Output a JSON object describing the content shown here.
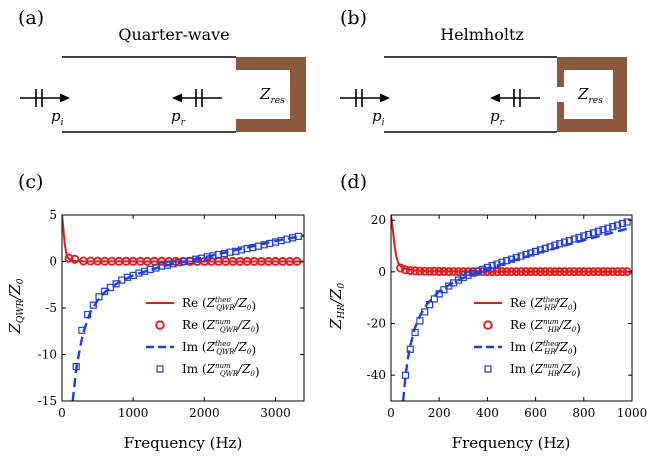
{
  "panel_labels": [
    "(a)",
    "(b)",
    "(c)",
    "(d)"
  ],
  "schematics": [
    {
      "title": "Quarter-wave",
      "incident_label": "p",
      "incident_sub": "i",
      "reflected_label": "p",
      "reflected_sub": "r",
      "impedance_label": "Z",
      "impedance_sub": "res",
      "wall_color": "#8b5a3c"
    },
    {
      "title": "Helmholtz",
      "incident_label": "p",
      "incident_sub": "i",
      "reflected_label": "p",
      "reflected_sub": "r",
      "impedance_label": "Z",
      "impedance_sub": "res",
      "wall_color": "#8b5a3c"
    }
  ],
  "colors": {
    "real": "#e41a1c",
    "imag": "#1f3fd6"
  },
  "chart_data": [
    {
      "type": "line",
      "xlabel": "Frequency (Hz)",
      "ylabel": {
        "base": "Z",
        "sub": "QWR",
        "rest": "/Z",
        "sub2": "0"
      },
      "xlim": [
        0,
        3400
      ],
      "ylim": [
        -15,
        5
      ],
      "xticks": [
        0,
        1000,
        2000,
        3000
      ],
      "yticks": [
        5,
        0,
        -5,
        -10,
        -15
      ],
      "xtick_labels": [
        "0",
        "1000",
        "2000",
        "3000"
      ],
      "ytick_labels": [
        "5",
        "0",
        "-5",
        "-10",
        "-15"
      ],
      "legend_position": "bottom-right",
      "legend": [
        {
          "pre": "Re (",
          "z": "Z",
          "sub": "QWR",
          "sup": "theo",
          "post": "/Z",
          "post_sub": "0",
          "close": ")"
        },
        {
          "pre": "Re (",
          "z": "Z",
          "sub": "QWR",
          "sup": "num",
          "post": "/Z",
          "post_sub": "0",
          "close": ")"
        },
        {
          "pre": "Im (",
          "z": "Z",
          "sub": "QWR",
          "sup": "theo",
          "post": "/Z",
          "post_sub": "0",
          "close": ")"
        },
        {
          "pre": "Im (",
          "z": "Z",
          "sub": "QWR",
          "sup": "num",
          "post": "/Z",
          "post_sub": "0",
          "close": ")"
        }
      ],
      "series": [
        {
          "style": "solid",
          "color": "real",
          "x": [
            0,
            20,
            40,
            60,
            80,
            100,
            150,
            200,
            300,
            500,
            800,
            1200,
            1600,
            2000,
            2400,
            2800,
            3200,
            3400
          ],
          "y": [
            5,
            3.5,
            1.8,
            0.9,
            0.45,
            0.25,
            0.1,
            0.05,
            0.02,
            0.01,
            0.01,
            0,
            0,
            0,
            0,
            0,
            0,
            0
          ]
        },
        {
          "style": "circle",
          "color": "real",
          "x": [
            100,
            180,
            300,
            400,
            500,
            600,
            700,
            800,
            900,
            1000,
            1100,
            1200,
            1300,
            1400,
            1500,
            1600,
            1700,
            1800,
            1900,
            2000,
            2100,
            2200,
            2300,
            2400,
            2500,
            2600,
            2700,
            2800,
            2900,
            3000,
            3100,
            3200,
            3300
          ],
          "y": [
            0.35,
            0.25,
            0.05,
            0.05,
            0.04,
            0.03,
            0.03,
            0.02,
            0.02,
            0.02,
            0.02,
            0.02,
            0.02,
            0.02,
            0.01,
            0.01,
            0.01,
            0.01,
            0.01,
            0.01,
            0.01,
            0.01,
            0.01,
            0.01,
            0.01,
            0.01,
            0.01,
            0.01,
            0.01,
            0.01,
            0.01,
            0.01,
            0.01
          ]
        },
        {
          "style": "dashed",
          "color": "imag",
          "x": [
            150,
            200,
            250,
            300,
            400,
            500,
            600,
            800,
            1000,
            1200,
            1400,
            1600,
            1800,
            2000,
            2200,
            2400,
            2600,
            2800,
            3000,
            3200,
            3400
          ],
          "y": [
            -15,
            -11.6,
            -9.4,
            -7.6,
            -5.4,
            -4.2,
            -3.3,
            -2.2,
            -1.5,
            -1.0,
            -0.55,
            -0.2,
            0.1,
            0.45,
            0.8,
            1.15,
            1.5,
            1.85,
            2.2,
            2.5,
            2.8
          ]
        },
        {
          "style": "square",
          "color": "imag",
          "x": [
            200,
            280,
            360,
            440,
            520,
            600,
            680,
            760,
            840,
            920,
            1000,
            1080,
            1160,
            1240,
            1320,
            1400,
            1480,
            1560,
            1640,
            1720,
            1800,
            1880,
            1960,
            2040,
            2120,
            2200,
            2280,
            2360,
            2440,
            2520,
            2600,
            2680,
            2760,
            2840,
            2920,
            3000,
            3080,
            3160,
            3240,
            3320
          ],
          "y": [
            -11.3,
            -7.4,
            -5.7,
            -4.7,
            -3.8,
            -3.2,
            -2.8,
            -2.4,
            -2.0,
            -1.7,
            -1.5,
            -1.25,
            -1.05,
            -0.85,
            -0.7,
            -0.5,
            -0.4,
            -0.25,
            -0.12,
            0.0,
            0.1,
            0.25,
            0.35,
            0.5,
            0.6,
            0.75,
            0.85,
            1.0,
            1.1,
            1.25,
            1.4,
            1.5,
            1.65,
            1.8,
            1.95,
            2.1,
            2.25,
            2.4,
            2.55,
            2.7
          ]
        }
      ]
    },
    {
      "type": "line",
      "xlabel": "Frequency (Hz)",
      "ylabel": {
        "base": "Z",
        "sub": "HR",
        "rest": "/Z",
        "sub2": "0"
      },
      "xlim": [
        0,
        1000
      ],
      "ylim": [
        -50,
        22
      ],
      "xticks": [
        0,
        200,
        400,
        600,
        800,
        1000
      ],
      "yticks": [
        20,
        0,
        -20,
        -40
      ],
      "xtick_labels": [
        "0",
        "200",
        "400",
        "600",
        "800",
        "1000"
      ],
      "ytick_labels": [
        "20",
        "0",
        "-20",
        "-40"
      ],
      "legend_position": "bottom-right",
      "legend": [
        {
          "pre": "Re (",
          "z": "Z",
          "sub": "HR",
          "sup": "theo",
          "post": "/Z",
          "post_sub": "0",
          "close": ")"
        },
        {
          "pre": "Re (",
          "z": "Z",
          "sub": "HR",
          "sup": "num",
          "post": "/Z",
          "post_sub": "0",
          "close": ")"
        },
        {
          "pre": "Im (",
          "z": "Z",
          "sub": "HR",
          "sup": "theo",
          "post": "/Z",
          "post_sub": "0",
          "close": ")"
        },
        {
          "pre": "Im (",
          "z": "Z",
          "sub": "HR",
          "sup": "num",
          "post": "/Z",
          "post_sub": "0",
          "close": ")"
        }
      ],
      "series": [
        {
          "style": "solid",
          "color": "real",
          "x": [
            0,
            8,
            15,
            22,
            30,
            40,
            50,
            70,
            100,
            150,
            200,
            400,
            600,
            800,
            1000
          ],
          "y": [
            22,
            16,
            10,
            6,
            3.5,
            2.2,
            1.5,
            0.9,
            0.5,
            0.3,
            0.2,
            0.1,
            0.05,
            0.02,
            0.02
          ]
        },
        {
          "style": "circle",
          "color": "real",
          "x": [
            40,
            60,
            80,
            100,
            120,
            140,
            160,
            180,
            200,
            220,
            240,
            260,
            280,
            300,
            320,
            340,
            360,
            380,
            400,
            420,
            440,
            460,
            480,
            500,
            520,
            540,
            560,
            580,
            600,
            620,
            640,
            660,
            680,
            700,
            720,
            740,
            760,
            780,
            800,
            820,
            840,
            860,
            880,
            900,
            920,
            940,
            960,
            980
          ],
          "y": [
            1.5,
            0.8,
            0.5,
            0.4,
            0.3,
            0.25,
            0.2,
            0.2,
            0.15,
            0.15,
            0.1,
            0.1,
            0.1,
            0.1,
            0.1,
            0.1,
            0.1,
            0.1,
            0.1,
            0.1,
            0.1,
            0.1,
            0.1,
            0.1,
            0.1,
            0.1,
            0.1,
            0.1,
            0.1,
            0.1,
            0.1,
            0.1,
            0.1,
            0.1,
            0.1,
            0.1,
            0.1,
            0.1,
            0.1,
            0.1,
            0.1,
            0.1,
            0.1,
            0.1,
            0.1,
            0.1,
            0.1,
            0.1
          ]
        },
        {
          "style": "dashed",
          "color": "imag",
          "x": [
            50,
            60,
            70,
            80,
            100,
            120,
            150,
            200,
            250,
            300,
            350,
            400,
            500,
            600,
            700,
            800,
            900,
            1000
          ],
          "y": [
            -50,
            -40.5,
            -33.5,
            -28.5,
            -21.5,
            -17,
            -12.5,
            -7.5,
            -4.5,
            -2.3,
            -0.5,
            1.2,
            4.2,
            7.0,
            9.6,
            12.2,
            14.7,
            17.2
          ]
        },
        {
          "style": "square",
          "color": "imag",
          "x": [
            60,
            80,
            100,
            120,
            140,
            160,
            180,
            200,
            220,
            240,
            260,
            280,
            300,
            320,
            340,
            360,
            380,
            400,
            420,
            440,
            460,
            480,
            500,
            520,
            540,
            560,
            580,
            600,
            620,
            640,
            660,
            680,
            700,
            720,
            740,
            760,
            780,
            800,
            820,
            840,
            860,
            880,
            900,
            920,
            940,
            960,
            980
          ],
          "y": [
            -40,
            -30,
            -23.5,
            -19,
            -15.5,
            -12.7,
            -10.5,
            -8.5,
            -6.9,
            -5.5,
            -4.3,
            -3.2,
            -2.2,
            -1.3,
            -0.5,
            0.3,
            1.0,
            1.7,
            2.4,
            3.0,
            3.7,
            4.3,
            4.9,
            5.5,
            6.1,
            6.7,
            7.3,
            7.9,
            8.5,
            9.1,
            9.7,
            10.3,
            10.9,
            11.5,
            12.1,
            12.7,
            13.3,
            13.9,
            14.5,
            15.1,
            15.7,
            16.3,
            16.9,
            17.5,
            18.1,
            18.7,
            19.3
          ]
        }
      ]
    }
  ]
}
